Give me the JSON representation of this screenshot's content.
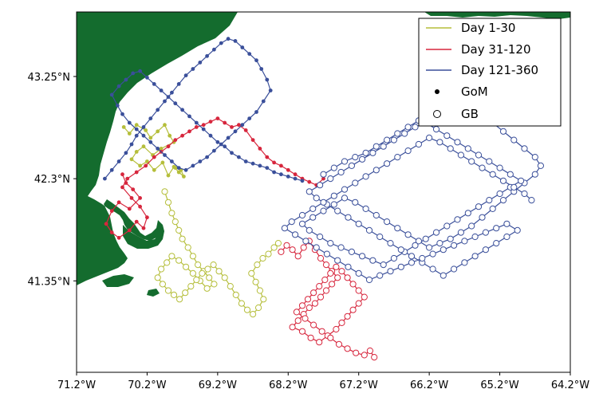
{
  "chart_data": {
    "type": "scatter",
    "title": "",
    "xlabel": "",
    "ylabel": "",
    "xlim": [
      -71.2,
      -64.2
    ],
    "ylim": [
      40.5,
      43.85
    ],
    "grid": false,
    "legend_position": "top-right",
    "x_ticks": [
      {
        "value": -71.2,
        "label": "71.2°W"
      },
      {
        "value": -70.2,
        "label": "70.2°W"
      },
      {
        "value": -69.2,
        "label": "69.2°W"
      },
      {
        "value": -68.2,
        "label": "68.2°W"
      },
      {
        "value": -67.2,
        "label": "67.2°W"
      },
      {
        "value": -66.2,
        "label": "66.2°W"
      },
      {
        "value": -65.2,
        "label": "65.2°W"
      },
      {
        "value": -64.2,
        "label": "64.2°W"
      }
    ],
    "y_ticks": [
      {
        "value": 43.25,
        "label": "43.25°N"
      },
      {
        "value": 42.3,
        "label": "42.3°N"
      },
      {
        "value": 41.35,
        "label": "41.35°N"
      }
    ],
    "legend": [
      {
        "label": "Day 1-30",
        "kind": "line",
        "color": "#b5be3a"
      },
      {
        "label": "Day 31-120",
        "kind": "line",
        "color": "#d7263d"
      },
      {
        "label": "Day 121-360",
        "kind": "line",
        "color": "#3a4f9a"
      },
      {
        "label": "GoM",
        "kind": "filled-marker"
      },
      {
        "label": "GB",
        "kind": "open-marker"
      }
    ],
    "land_color": "#146c2e",
    "series": [
      {
        "name": "Day 1-30",
        "group": "GoM",
        "marker": "filled",
        "color": "#b5be3a",
        "x": [
          -70.53,
          -70.45,
          -70.35,
          -70.22,
          -70.15,
          -70.05,
          -69.95,
          -69.88,
          -69.82,
          -70.0,
          -70.12,
          -70.25,
          -70.35,
          -70.42,
          -70.3,
          -70.2,
          -70.1,
          -69.98,
          -69.9,
          -69.82,
          -69.75,
          -69.68,
          -69.72,
          -69.8
        ],
        "y": [
          42.78,
          42.72,
          42.8,
          42.75,
          42.68,
          42.74,
          42.8,
          42.7,
          42.64,
          42.58,
          42.52,
          42.6,
          42.55,
          42.48,
          42.42,
          42.46,
          42.38,
          42.45,
          42.33,
          42.41,
          42.36,
          42.32,
          42.38,
          42.4
        ]
      },
      {
        "name": "Day 31-120",
        "group": "GoM",
        "marker": "filled",
        "color": "#d7263d",
        "x": [
          -70.55,
          -70.5,
          -70.4,
          -70.3,
          -70.45,
          -70.6,
          -70.7,
          -70.78,
          -70.7,
          -70.6,
          -70.45,
          -70.35,
          -70.25,
          -70.2,
          -70.3,
          -70.42,
          -70.55,
          -70.48,
          -70.35,
          -70.22,
          -70.1,
          -70.0,
          -69.9,
          -69.8,
          -69.7,
          -69.6,
          -69.5,
          -69.4,
          -69.3,
          -69.2,
          -69.1,
          -69.0,
          -68.9,
          -68.8,
          -68.7,
          -68.6,
          -68.5,
          -68.4,
          -68.3,
          -68.2,
          -68.1,
          -68.0,
          -67.9,
          -67.8,
          -67.7
        ],
        "y": [
          42.34,
          42.26,
          42.2,
          42.12,
          42.02,
          42.08,
          42.0,
          41.88,
          41.8,
          41.75,
          41.82,
          41.9,
          41.84,
          41.94,
          42.04,
          42.12,
          42.22,
          42.3,
          42.36,
          42.42,
          42.5,
          42.55,
          42.6,
          42.66,
          42.7,
          42.74,
          42.78,
          42.8,
          42.83,
          42.86,
          42.82,
          42.78,
          42.8,
          42.75,
          42.66,
          42.58,
          42.5,
          42.45,
          42.42,
          42.38,
          42.34,
          42.3,
          42.27,
          42.24,
          42.3
        ]
      },
      {
        "name": "Day 121-360",
        "group": "GoM",
        "marker": "filled",
        "color": "#3a4f9a",
        "x": [
          -70.8,
          -70.7,
          -70.6,
          -70.5,
          -70.42,
          -70.35,
          -70.25,
          -70.15,
          -70.05,
          -69.95,
          -69.85,
          -69.75,
          -69.65,
          -69.55,
          -69.45,
          -69.35,
          -69.25,
          -69.15,
          -69.05,
          -68.95,
          -68.85,
          -68.75,
          -68.65,
          -68.58,
          -68.5,
          -68.45,
          -68.55,
          -68.65,
          -68.75,
          -68.85,
          -68.95,
          -69.05,
          -69.15,
          -69.25,
          -69.35,
          -69.45,
          -69.55,
          -69.65,
          -69.75,
          -69.85,
          -69.95,
          -70.05,
          -70.15,
          -70.25,
          -70.35,
          -70.45,
          -70.55,
          -70.62,
          -70.7,
          -70.6,
          -70.5,
          -70.4,
          -70.3,
          -70.2,
          -70.1,
          -70.0,
          -69.9,
          -69.8,
          -69.7,
          -69.6,
          -69.5,
          -69.4,
          -69.3,
          -69.2,
          -69.1,
          -69.0,
          -68.9,
          -68.8,
          -68.7,
          -68.6,
          -68.5,
          -68.4,
          -68.3,
          -68.2,
          -68.1,
          -68.0
        ],
        "y": [
          42.3,
          42.38,
          42.46,
          42.54,
          42.62,
          42.7,
          42.78,
          42.86,
          42.94,
          43.02,
          43.1,
          43.18,
          43.26,
          43.32,
          43.38,
          43.44,
          43.5,
          43.56,
          43.6,
          43.58,
          43.52,
          43.46,
          43.4,
          43.32,
          43.22,
          43.12,
          43.02,
          42.92,
          42.86,
          42.8,
          42.74,
          42.68,
          42.62,
          42.56,
          42.5,
          42.46,
          42.42,
          42.38,
          42.4,
          42.46,
          42.52,
          42.58,
          42.64,
          42.7,
          42.76,
          42.82,
          42.9,
          42.98,
          43.08,
          43.16,
          43.22,
          43.28,
          43.3,
          43.24,
          43.18,
          43.12,
          43.06,
          43.0,
          42.94,
          42.88,
          42.82,
          42.76,
          42.7,
          42.64,
          42.6,
          42.54,
          42.5,
          42.46,
          42.44,
          42.42,
          42.4,
          42.36,
          42.34,
          42.32,
          42.3,
          42.28
        ]
      },
      {
        "name": "Day 1-30",
        "group": "GB",
        "marker": "open",
        "color": "#b5be3a",
        "x": [
          -69.95,
          -69.9,
          -69.85,
          -69.8,
          -69.75,
          -69.7,
          -69.62,
          -69.55,
          -69.48,
          -69.4,
          -69.32,
          -69.25,
          -69.35,
          -69.45,
          -69.55,
          -69.65,
          -69.75,
          -69.85,
          -69.92,
          -70.0,
          -70.05,
          -69.98,
          -69.9,
          -69.82,
          -69.74,
          -69.66,
          -69.58,
          -69.5,
          -69.42,
          -69.34,
          -69.26,
          -69.18,
          -69.1,
          -69.02,
          -68.94,
          -68.86,
          -68.78,
          -68.7,
          -68.62,
          -68.55,
          -68.6,
          -68.66,
          -68.72,
          -68.64,
          -68.56,
          -68.48,
          -68.4,
          -68.34
        ],
        "y": [
          42.18,
          42.08,
          41.98,
          41.9,
          41.82,
          41.74,
          41.66,
          41.58,
          41.5,
          41.44,
          41.38,
          41.32,
          41.28,
          41.35,
          41.42,
          41.48,
          41.54,
          41.58,
          41.52,
          41.46,
          41.38,
          41.32,
          41.26,
          41.22,
          41.18,
          41.24,
          41.3,
          41.36,
          41.42,
          41.46,
          41.5,
          41.44,
          41.38,
          41.3,
          41.22,
          41.14,
          41.08,
          41.04,
          41.1,
          41.18,
          41.26,
          41.34,
          41.42,
          41.5,
          41.56,
          41.6,
          41.66,
          41.7
        ]
      },
      {
        "name": "Day 31-120",
        "group": "GB",
        "marker": "open",
        "color": "#d7263d",
        "x": [
          -68.3,
          -68.22,
          -68.14,
          -68.06,
          -67.98,
          -67.9,
          -67.82,
          -67.74,
          -67.66,
          -67.58,
          -67.5,
          -67.58,
          -67.66,
          -67.74,
          -67.82,
          -67.9,
          -67.98,
          -68.06,
          -68.14,
          -68.0,
          -67.88,
          -67.76,
          -67.64,
          -67.52,
          -67.44,
          -67.36,
          -67.28,
          -67.2,
          -67.12,
          -67.2,
          -67.28,
          -67.36,
          -67.44,
          -67.52,
          -67.6,
          -67.68,
          -67.76,
          -67.84,
          -67.92,
          -68.0,
          -68.08,
          -67.96,
          -67.84,
          -67.72,
          -67.6,
          -67.48,
          -67.36,
          -67.24,
          -67.12,
          -67.04,
          -66.98
        ],
        "y": [
          41.62,
          41.68,
          41.64,
          41.58,
          41.66,
          41.72,
          41.64,
          41.56,
          41.5,
          41.44,
          41.38,
          41.32,
          41.26,
          41.2,
          41.14,
          41.1,
          41.04,
          40.98,
          40.92,
          40.88,
          40.82,
          40.78,
          40.84,
          40.9,
          40.96,
          41.02,
          41.08,
          41.14,
          41.2,
          41.26,
          41.32,
          41.38,
          41.44,
          41.48,
          41.42,
          41.36,
          41.3,
          41.24,
          41.18,
          41.12,
          41.06,
          41.0,
          40.94,
          40.88,
          40.82,
          40.76,
          40.72,
          40.68,
          40.66,
          40.7,
          40.64
        ]
      },
      {
        "name": "Day 121-360",
        "group": "GB",
        "marker": "open",
        "color": "#3a4f9a",
        "x": [
          -67.7,
          -67.55,
          -67.4,
          -67.25,
          -67.1,
          -66.95,
          -66.8,
          -66.65,
          -66.5,
          -66.35,
          -66.2,
          -66.05,
          -65.9,
          -65.75,
          -65.6,
          -65.45,
          -65.3,
          -65.15,
          -65.0,
          -64.85,
          -64.7,
          -64.62,
          -64.7,
          -64.85,
          -65.0,
          -65.15,
          -65.3,
          -65.45,
          -65.6,
          -65.75,
          -65.9,
          -66.05,
          -66.2,
          -66.35,
          -66.5,
          -66.65,
          -66.8,
          -66.95,
          -67.1,
          -67.25,
          -67.4,
          -67.55,
          -67.7,
          -67.85,
          -68.0,
          -67.9,
          -67.75,
          -67.6,
          -67.45,
          -67.3,
          -67.15,
          -67.0,
          -66.85,
          -66.7,
          -66.55,
          -66.4,
          -66.25,
          -66.1,
          -65.95,
          -65.8,
          -65.65,
          -65.5,
          -65.35,
          -65.2,
          -65.05,
          -64.9,
          -65.05,
          -65.2,
          -65.35,
          -65.5,
          -65.65,
          -65.8,
          -65.95,
          -66.1,
          -66.25,
          -66.4,
          -66.55,
          -66.7,
          -66.85,
          -67.0,
          -67.15,
          -67.3,
          -67.45,
          -67.6,
          -67.75,
          -67.9,
          -67.8,
          -67.65,
          -67.5,
          -67.35,
          -67.2,
          -67.05,
          -66.9,
          -66.75,
          -66.6,
          -66.45,
          -66.3,
          -66.15,
          -66.0,
          -65.85,
          -65.7,
          -65.55,
          -65.4,
          -65.25,
          -65.1,
          -64.95,
          -65.1,
          -65.25,
          -65.4,
          -65.55,
          -65.7,
          -65.85,
          -66.0,
          -66.15,
          -66.3,
          -66.45,
          -66.6,
          -66.75,
          -66.9,
          -67.05,
          -67.2,
          -67.35,
          -67.5,
          -67.65,
          -67.8,
          -67.95,
          -68.1,
          -68.25,
          -68.15,
          -68.0,
          -67.85,
          -67.7,
          -67.55,
          -67.4,
          -67.25,
          -67.1,
          -66.95,
          -66.8,
          -66.65,
          -66.5,
          -66.35,
          -66.2,
          -66.05,
          -65.9,
          -65.75,
          -65.6,
          -65.45,
          -65.3,
          -65.15,
          -65.0,
          -64.85,
          -64.75
        ],
        "y": [
          42.34,
          42.4,
          42.46,
          42.5,
          42.54,
          42.6,
          42.66,
          42.72,
          42.78,
          42.84,
          42.9,
          42.96,
          43.0,
          43.04,
          42.98,
          42.9,
          42.82,
          42.74,
          42.66,
          42.58,
          42.5,
          42.42,
          42.34,
          42.26,
          42.18,
          42.1,
          42.02,
          41.94,
          41.86,
          41.8,
          41.74,
          41.7,
          41.66,
          41.72,
          41.78,
          41.84,
          41.9,
          41.96,
          42.02,
          42.08,
          42.12,
          42.06,
          42.0,
          41.94,
          41.88,
          41.82,
          41.76,
          41.7,
          41.66,
          41.62,
          41.58,
          41.54,
          41.5,
          41.56,
          41.62,
          41.68,
          41.74,
          41.8,
          41.86,
          41.92,
          41.98,
          42.04,
          42.1,
          42.16,
          42.22,
          42.28,
          42.34,
          42.4,
          42.46,
          42.52,
          42.58,
          42.64,
          42.7,
          42.76,
          42.82,
          42.78,
          42.72,
          42.66,
          42.6,
          42.54,
          42.48,
          42.42,
          42.36,
          42.3,
          42.24,
          42.18,
          42.12,
          42.06,
          42.0,
          41.94,
          41.88,
          41.82,
          41.76,
          41.7,
          41.64,
          41.58,
          41.52,
          41.46,
          41.4,
          41.46,
          41.52,
          41.58,
          41.64,
          41.7,
          41.76,
          41.82,
          41.88,
          41.84,
          41.8,
          41.76,
          41.72,
          41.68,
          41.64,
          41.6,
          41.56,
          41.52,
          41.48,
          41.44,
          41.4,
          41.36,
          41.42,
          41.48,
          41.54,
          41.6,
          41.66,
          41.72,
          41.78,
          41.84,
          41.9,
          41.96,
          42.02,
          42.08,
          42.14,
          42.2,
          42.26,
          42.32,
          42.38,
          42.44,
          42.5,
          42.56,
          42.62,
          42.68,
          42.64,
          42.58,
          42.52,
          42.46,
          42.4,
          42.34,
          42.28,
          42.22,
          42.16,
          42.1
        ]
      }
    ]
  }
}
